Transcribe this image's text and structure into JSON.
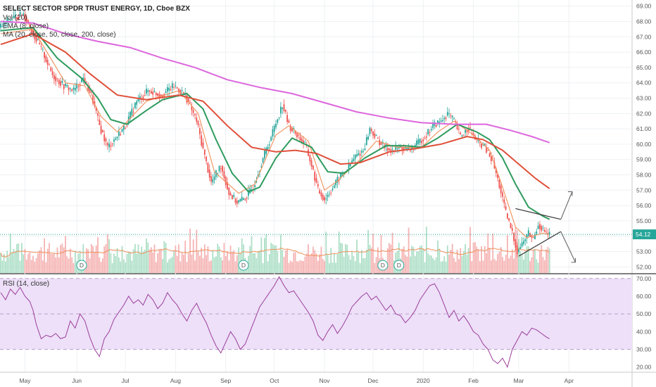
{
  "legend": {
    "title": "SELECT SECTOR SPDR TRUST ENERGY, 1D, Cboe BZX",
    "vol": "Vol (20)",
    "ema": "EMA (8, close)",
    "sma": "MA (20, close, 50, close, 200, close)",
    "rsi": "RSI (14, close)"
  },
  "chart_data": [
    {
      "type": "candlestick",
      "title": "SELECT SECTOR SPDR TRUST ENERGY, 1D, Cboe BZX",
      "y_ticks": [
        "52.00",
        "53.00",
        "54.00",
        "55.00",
        "56.00",
        "57.00",
        "58.00",
        "59.00",
        "60.00",
        "61.00",
        "62.00",
        "63.00",
        "64.00",
        "65.00",
        "66.00",
        "67.00",
        "68.00",
        "69.00"
      ],
      "ylim": [
        51.6,
        69.4
      ],
      "current_price": "54.12",
      "x_ticks": [
        "May",
        "Jun",
        "Jul",
        "Aug",
        "Sep",
        "Oct",
        "Nov",
        "Dec",
        "2020",
        "Feb",
        "Mar",
        "Apr"
      ],
      "dividend_marker": "D",
      "price_path": [
        {
          "d": 0,
          "p": 67.6
        },
        {
          "d": 8,
          "p": 68.2
        },
        {
          "d": 15,
          "p": 68.5
        },
        {
          "d": 22,
          "p": 67.0
        },
        {
          "d": 27,
          "p": 66.0
        },
        {
          "d": 33,
          "p": 64.5
        },
        {
          "d": 40,
          "p": 63.8
        },
        {
          "d": 46,
          "p": 63.5
        },
        {
          "d": 52,
          "p": 64.3
        },
        {
          "d": 57,
          "p": 63.2
        },
        {
          "d": 62,
          "p": 61.2
        },
        {
          "d": 67,
          "p": 59.8
        },
        {
          "d": 72,
          "p": 60.4
        },
        {
          "d": 78,
          "p": 61.2
        },
        {
          "d": 85,
          "p": 62.8
        },
        {
          "d": 92,
          "p": 63.5
        },
        {
          "d": 100,
          "p": 63.2
        },
        {
          "d": 108,
          "p": 63.8
        },
        {
          "d": 115,
          "p": 63.2
        },
        {
          "d": 122,
          "p": 61.5
        },
        {
          "d": 127,
          "p": 59.2
        },
        {
          "d": 131,
          "p": 57.5
        },
        {
          "d": 137,
          "p": 58.6
        },
        {
          "d": 142,
          "p": 56.8
        },
        {
          "d": 147,
          "p": 56.2
        },
        {
          "d": 152,
          "p": 56.5
        },
        {
          "d": 157,
          "p": 57.2
        },
        {
          "d": 162,
          "p": 58.8
        },
        {
          "d": 167,
          "p": 60.2
        },
        {
          "d": 171,
          "p": 61.4
        },
        {
          "d": 175,
          "p": 62.6
        },
        {
          "d": 179,
          "p": 61.2
        },
        {
          "d": 184,
          "p": 60.6
        },
        {
          "d": 189,
          "p": 60.0
        },
        {
          "d": 193,
          "p": 58.6
        },
        {
          "d": 197,
          "p": 57.0
        },
        {
          "d": 201,
          "p": 56.4
        },
        {
          "d": 205,
          "p": 57.0
        },
        {
          "d": 210,
          "p": 57.8
        },
        {
          "d": 215,
          "p": 58.4
        },
        {
          "d": 220,
          "p": 59.2
        },
        {
          "d": 225,
          "p": 59.6
        },
        {
          "d": 229,
          "p": 61.0
        },
        {
          "d": 233,
          "p": 60.4
        },
        {
          "d": 238,
          "p": 59.8
        },
        {
          "d": 243,
          "p": 59.6
        },
        {
          "d": 248,
          "p": 59.8
        },
        {
          "d": 253,
          "p": 59.6
        },
        {
          "d": 258,
          "p": 60.0
        },
        {
          "d": 263,
          "p": 60.5
        },
        {
          "d": 268,
          "p": 61.2
        },
        {
          "d": 273,
          "p": 61.5
        },
        {
          "d": 277,
          "p": 62.0
        },
        {
          "d": 281,
          "p": 61.5
        },
        {
          "d": 285,
          "p": 60.5
        },
        {
          "d": 290,
          "p": 61.1
        },
        {
          "d": 295,
          "p": 60.2
        },
        {
          "d": 300,
          "p": 59.8
        },
        {
          "d": 305,
          "p": 58.8
        },
        {
          "d": 309,
          "p": 57.3
        },
        {
          "d": 313,
          "p": 55.5
        },
        {
          "d": 317,
          "p": 54.2
        },
        {
          "d": 320,
          "p": 53.0
        },
        {
          "d": 323,
          "p": 53.5
        },
        {
          "d": 327,
          "p": 54.2
        },
        {
          "d": 330,
          "p": 53.8
        },
        {
          "d": 333,
          "p": 54.8
        },
        {
          "d": 336,
          "p": 54.4
        },
        {
          "d": 339,
          "p": 54.1
        }
      ],
      "ma_series": [
        {
          "name": "EMA 8",
          "color": "#f0905a",
          "values": [
            [
              0,
              67.2
            ],
            [
              20,
              67.5
            ],
            [
              40,
              64.0
            ],
            [
              52,
              63.8
            ],
            [
              62,
              61.8
            ],
            [
              72,
              60.8
            ],
            [
              90,
              62.8
            ],
            [
              110,
              63.5
            ],
            [
              122,
              62.0
            ],
            [
              132,
              58.2
            ],
            [
              147,
              56.8
            ],
            [
              157,
              57.4
            ],
            [
              170,
              60.6
            ],
            [
              178,
              61.2
            ],
            [
              190,
              60.2
            ],
            [
              200,
              57.0
            ],
            [
              208,
              57.6
            ],
            [
              222,
              59.0
            ],
            [
              232,
              60.2
            ],
            [
              245,
              59.8
            ],
            [
              260,
              59.8
            ],
            [
              270,
              60.8
            ],
            [
              280,
              61.5
            ],
            [
              292,
              60.6
            ],
            [
              302,
              59.6
            ],
            [
              310,
              57.2
            ],
            [
              318,
              54.6
            ],
            [
              325,
              53.9
            ],
            [
              335,
              54.2
            ],
            [
              339,
              54.1
            ]
          ]
        },
        {
          "name": "MA 20",
          "color": "#2f9b5e",
          "values": [
            [
              0,
              67.4
            ],
            [
              20,
              67.6
            ],
            [
              35,
              65.6
            ],
            [
              50,
              64.3
            ],
            [
              60,
              63.0
            ],
            [
              68,
              61.6
            ],
            [
              78,
              61.3
            ],
            [
              90,
              62.2
            ],
            [
              100,
              62.9
            ],
            [
              115,
              63.3
            ],
            [
              125,
              62.3
            ],
            [
              133,
              60.3
            ],
            [
              143,
              58.1
            ],
            [
              153,
              56.9
            ],
            [
              160,
              57.2
            ],
            [
              170,
              59.1
            ],
            [
              180,
              60.4
            ],
            [
              192,
              59.8
            ],
            [
              202,
              58.2
            ],
            [
              212,
              58.1
            ],
            [
              225,
              59.1
            ],
            [
              238,
              59.9
            ],
            [
              250,
              59.9
            ],
            [
              260,
              59.8
            ],
            [
              270,
              60.4
            ],
            [
              282,
              61.3
            ],
            [
              294,
              60.8
            ],
            [
              302,
              60.3
            ],
            [
              310,
              59.1
            ],
            [
              318,
              57.4
            ],
            [
              326,
              55.9
            ],
            [
              335,
              55.3
            ],
            [
              339,
              55.1
            ]
          ]
        },
        {
          "name": "MA 50",
          "color": "#e0503a",
          "values": [
            [
              0,
              66.5
            ],
            [
              20,
              67.2
            ],
            [
              40,
              66.0
            ],
            [
              55,
              64.6
            ],
            [
              72,
              63.2
            ],
            [
              90,
              62.9
            ],
            [
              110,
              63.2
            ],
            [
              125,
              62.8
            ],
            [
              140,
              61.2
            ],
            [
              155,
              59.8
            ],
            [
              170,
              59.5
            ],
            [
              182,
              59.6
            ],
            [
              195,
              59.4
            ],
            [
              210,
              58.7
            ],
            [
              222,
              58.8
            ],
            [
              240,
              59.5
            ],
            [
              256,
              59.7
            ],
            [
              272,
              60.0
            ],
            [
              288,
              60.5
            ],
            [
              298,
              60.3
            ],
            [
              310,
              59.6
            ],
            [
              320,
              58.7
            ],
            [
              330,
              57.8
            ],
            [
              339,
              57.1
            ]
          ]
        },
        {
          "name": "MA 200",
          "color": "#dd66dd",
          "values": [
            [
              0,
              68.0
            ],
            [
              20,
              67.9
            ],
            [
              40,
              67.2
            ],
            [
              60,
              66.7
            ],
            [
              80,
              66.3
            ],
            [
              100,
              65.6
            ],
            [
              120,
              65.0
            ],
            [
              140,
              64.2
            ],
            [
              160,
              63.7
            ],
            [
              180,
              63.3
            ],
            [
              200,
              62.7
            ],
            [
              220,
              62.1
            ],
            [
              240,
              61.7
            ],
            [
              260,
              61.4
            ],
            [
              280,
              61.3
            ],
            [
              300,
              61.3
            ],
            [
              315,
              60.9
            ],
            [
              328,
              60.5
            ],
            [
              339,
              60.1
            ]
          ]
        }
      ],
      "volume": {
        "ma_color": "#f0905a"
      },
      "dividends_days": [
        50,
        150,
        236,
        246
      ]
    },
    {
      "type": "line",
      "title": "RSI (14, close)",
      "y_ticks": [
        "20.00",
        "30.00",
        "40.00",
        "50.00",
        "60.00",
        "70.00"
      ],
      "ylim": [
        17.5,
        71.5
      ],
      "band": [
        30,
        70
      ],
      "color": "#9c3d9c",
      "values": [
        [
          0,
          62
        ],
        [
          3,
          58
        ],
        [
          6,
          64
        ],
        [
          9,
          61
        ],
        [
          12,
          65
        ],
        [
          15,
          60
        ],
        [
          18,
          57
        ],
        [
          20,
          52
        ],
        [
          22,
          44
        ],
        [
          25,
          36
        ],
        [
          28,
          38
        ],
        [
          31,
          37
        ],
        [
          34,
          39
        ],
        [
          37,
          36
        ],
        [
          40,
          37
        ],
        [
          43,
          46
        ],
        [
          46,
          42
        ],
        [
          49,
          50
        ],
        [
          52,
          46
        ],
        [
          55,
          37
        ],
        [
          58,
          30
        ],
        [
          61,
          26
        ],
        [
          64,
          36
        ],
        [
          67,
          40
        ],
        [
          70,
          47
        ],
        [
          73,
          51
        ],
        [
          76,
          55
        ],
        [
          79,
          60
        ],
        [
          82,
          56
        ],
        [
          85,
          58
        ],
        [
          88,
          55
        ],
        [
          91,
          61
        ],
        [
          94,
          58
        ],
        [
          97,
          53
        ],
        [
          100,
          56
        ],
        [
          103,
          62
        ],
        [
          106,
          58
        ],
        [
          109,
          55
        ],
        [
          112,
          50
        ],
        [
          115,
          46
        ],
        [
          118,
          52
        ],
        [
          121,
          56
        ],
        [
          124,
          50
        ],
        [
          127,
          45
        ],
        [
          130,
          38
        ],
        [
          133,
          32
        ],
        [
          136,
          28
        ],
        [
          139,
          34
        ],
        [
          142,
          40
        ],
        [
          145,
          36
        ],
        [
          148,
          30
        ],
        [
          151,
          33
        ],
        [
          154,
          40
        ],
        [
          157,
          47
        ],
        [
          160,
          54
        ],
        [
          163,
          58
        ],
        [
          166,
          62
        ],
        [
          169,
          66
        ],
        [
          172,
          71
        ],
        [
          175,
          66
        ],
        [
          178,
          62
        ],
        [
          181,
          63
        ],
        [
          184,
          59
        ],
        [
          187,
          55
        ],
        [
          190,
          51
        ],
        [
          193,
          46
        ],
        [
          196,
          38
        ],
        [
          199,
          35
        ],
        [
          202,
          40
        ],
        [
          205,
          44
        ],
        [
          208,
          39
        ],
        [
          211,
          43
        ],
        [
          214,
          48
        ],
        [
          217,
          54
        ],
        [
          220,
          57
        ],
        [
          223,
          60
        ],
        [
          226,
          62
        ],
        [
          229,
          58
        ],
        [
          232,
          60
        ],
        [
          235,
          56
        ],
        [
          238,
          52
        ],
        [
          241,
          55
        ],
        [
          244,
          50
        ],
        [
          247,
          49
        ],
        [
          250,
          45
        ],
        [
          253,
          48
        ],
        [
          256,
          52
        ],
        [
          259,
          58
        ],
        [
          262,
          62
        ],
        [
          265,
          66
        ],
        [
          268,
          67
        ],
        [
          271,
          62
        ],
        [
          274,
          55
        ],
        [
          277,
          48
        ],
        [
          280,
          52
        ],
        [
          283,
          46
        ],
        [
          286,
          49
        ],
        [
          289,
          45
        ],
        [
          292,
          40
        ],
        [
          295,
          38
        ],
        [
          298,
          33
        ],
        [
          301,
          30
        ],
        [
          304,
          24
        ],
        [
          307,
          22
        ],
        [
          310,
          25
        ],
        [
          313,
          20
        ],
        [
          316,
          30
        ],
        [
          319,
          35
        ],
        [
          322,
          40
        ],
        [
          325,
          38
        ],
        [
          328,
          42
        ],
        [
          331,
          41
        ],
        [
          334,
          39
        ],
        [
          337,
          37
        ],
        [
          339,
          36
        ]
      ]
    }
  ]
}
